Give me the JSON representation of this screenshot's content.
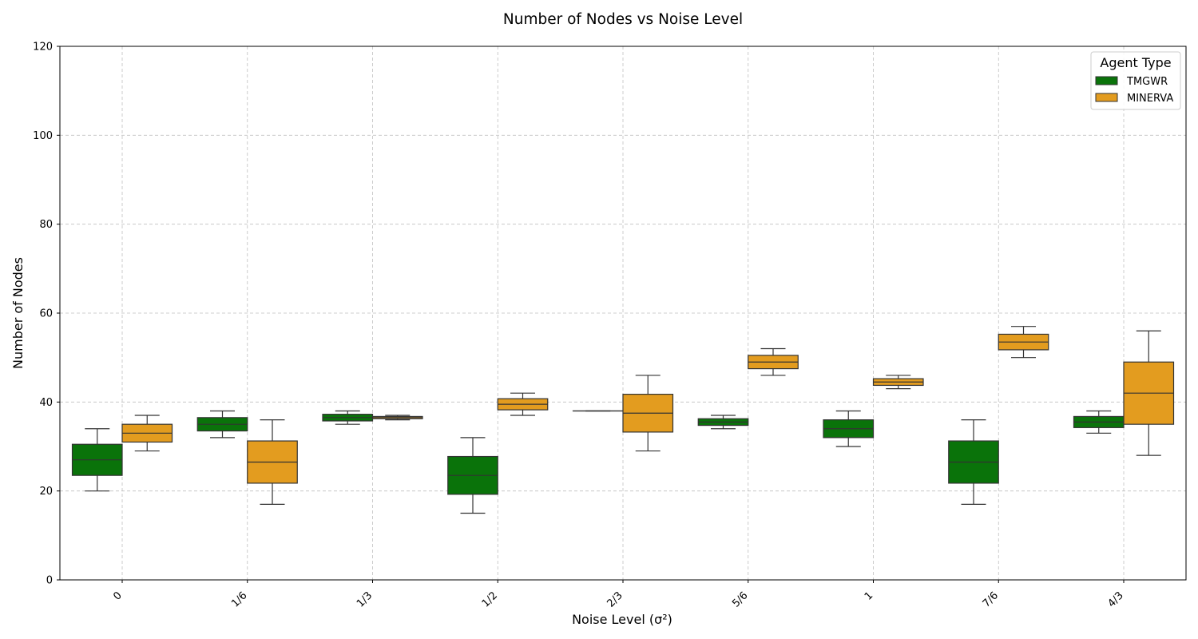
{
  "chart_data": {
    "type": "box",
    "title": "Number of Nodes vs Noise Level",
    "xlabel": "Noise Level (σ²)",
    "ylabel": "Number of Nodes",
    "ylim": [
      0,
      120
    ],
    "yticks": [
      "0",
      "20",
      "40",
      "60",
      "80",
      "100",
      "120"
    ],
    "grid": true,
    "legend": {
      "title": "Agent Type",
      "position": "top-right"
    },
    "categories": [
      "0",
      "1/6",
      "1/3",
      "1/2",
      "2/3",
      "5/6",
      "1",
      "7/6",
      "4/3"
    ],
    "series": [
      {
        "name": "TMGWR",
        "color": "#0a730a",
        "boxes": [
          {
            "whisker_low": 20,
            "q1": 23.5,
            "median": 27,
            "q3": 30.5,
            "whisker_high": 34
          },
          {
            "whisker_low": 32,
            "q1": 33.5,
            "median": 35,
            "q3": 36.5,
            "whisker_high": 38
          },
          {
            "whisker_low": 35,
            "q1": 35.75,
            "median": 36.5,
            "q3": 37.25,
            "whisker_high": 38
          },
          {
            "whisker_low": 15,
            "q1": 19.25,
            "median": 23.5,
            "q3": 27.75,
            "whisker_high": 32
          },
          {
            "whisker_low": 38,
            "q1": 38,
            "median": 38,
            "q3": 38,
            "whisker_high": 38
          },
          {
            "whisker_low": 34,
            "q1": 34.75,
            "median": 35.5,
            "q3": 36.25,
            "whisker_high": 37
          },
          {
            "whisker_low": 30,
            "q1": 32,
            "median": 34,
            "q3": 36,
            "whisker_high": 38
          },
          {
            "whisker_low": 17,
            "q1": 21.75,
            "median": 26.5,
            "q3": 31.25,
            "whisker_high": 36
          },
          {
            "whisker_low": 33,
            "q1": 34.25,
            "median": 35.5,
            "q3": 36.75,
            "whisker_high": 38
          }
        ]
      },
      {
        "name": "MINERVA",
        "color": "#e39c1f",
        "boxes": [
          {
            "whisker_low": 29,
            "q1": 31,
            "median": 33,
            "q3": 35,
            "whisker_high": 37
          },
          {
            "whisker_low": 17,
            "q1": 21.75,
            "median": 26.5,
            "q3": 31.25,
            "whisker_high": 36
          },
          {
            "whisker_low": 36,
            "q1": 36.25,
            "median": 36.5,
            "q3": 36.75,
            "whisker_high": 37
          },
          {
            "whisker_low": 37,
            "q1": 38.25,
            "median": 39.5,
            "q3": 40.75,
            "whisker_high": 42
          },
          {
            "whisker_low": 29,
            "q1": 33.25,
            "median": 37.5,
            "q3": 41.75,
            "whisker_high": 46
          },
          {
            "whisker_low": 46,
            "q1": 47.5,
            "median": 49,
            "q3": 50.5,
            "whisker_high": 52
          },
          {
            "whisker_low": 43,
            "q1": 43.75,
            "median": 44.5,
            "q3": 45.25,
            "whisker_high": 46
          },
          {
            "whisker_low": 50,
            "q1": 51.75,
            "median": 53.5,
            "q3": 55.25,
            "whisker_high": 57
          },
          {
            "whisker_low": 28,
            "q1": 35,
            "median": 42,
            "q3": 49,
            "whisker_high": 56
          }
        ]
      }
    ]
  }
}
